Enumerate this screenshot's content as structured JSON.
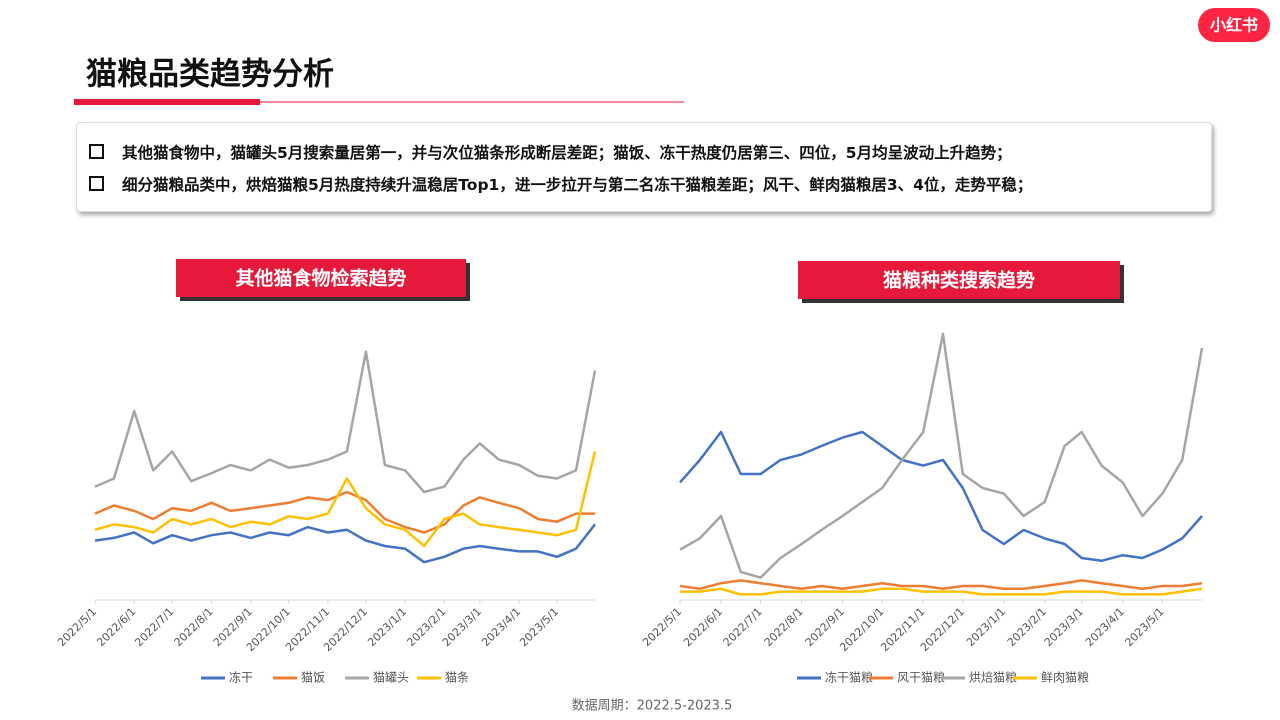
{
  "header": {
    "title": "猫粮品类趋势分析",
    "logo": "小红书"
  },
  "bullets": [
    "其他猫食物中，猫罐头5月搜索量居第一，并与次位猫条形成断层差距；猫饭、冻干热度仍居第三、四位，5月均呈波动上升趋势；",
    "细分猫粮品类中，烘焙猫粮5月热度持续升温稳居Top1，进一步拉开与第二名冻干猫粮差距；风干、鲜肉猫粮居3、4位，走势平稳；"
  ],
  "chart_data": [
    {
      "type": "line",
      "title": "其他猫食物检索趋势",
      "x": [
        "2022/5/1",
        "2022/5/16",
        "2022/6/1",
        "2022/6/16",
        "2022/7/1",
        "2022/7/16",
        "2022/8/1",
        "2022/8/16",
        "2022/9/1",
        "2022/9/16",
        "2022/10/1",
        "2022/10/16",
        "2022/11/1",
        "2022/11/16",
        "2022/12/1",
        "2022/12/16",
        "2023/1/1",
        "2023/1/16",
        "2023/2/1",
        "2023/2/16",
        "2023/3/1",
        "2023/3/16",
        "2023/4/1",
        "2023/4/16",
        "2023/5/1",
        "2023/5/16",
        "2023/5/31"
      ],
      "xlim": [
        "2022/5/1",
        "2023/5/31"
      ],
      "xticks": [
        "2022/5/1",
        "2022/6/1",
        "2022/7/1",
        "2022/8/1",
        "2022/9/1",
        "2022/10/1",
        "2022/11/1",
        "2022/12/1",
        "2023/1/1",
        "2023/2/1",
        "2023/3/1",
        "2023/4/1",
        "2023/5/1"
      ],
      "ylim": [
        0,
        100
      ],
      "series": [
        {
          "name": "冻干",
          "color": "#4472c4",
          "values": [
            22,
            23,
            25,
            21,
            24,
            22,
            24,
            25,
            23,
            25,
            24,
            27,
            25,
            26,
            22,
            20,
            19,
            14,
            16,
            19,
            20,
            19,
            18,
            18,
            16,
            19,
            28
          ]
        },
        {
          "name": "猫饭",
          "color": "#ed7d31",
          "values": [
            32,
            35,
            33,
            30,
            34,
            33,
            36,
            33,
            34,
            35,
            36,
            38,
            37,
            40,
            37,
            30,
            27,
            25,
            28,
            35,
            38,
            36,
            34,
            30,
            29,
            32,
            32
          ]
        },
        {
          "name": "猫罐头",
          "color": "#a5a5a5",
          "values": [
            42,
            45,
            70,
            48,
            55,
            44,
            47,
            50,
            48,
            52,
            49,
            50,
            52,
            55,
            92,
            50,
            48,
            40,
            42,
            52,
            58,
            52,
            50,
            46,
            45,
            48,
            85
          ]
        },
        {
          "name": "猫条",
          "color": "#ffc000",
          "values": [
            26,
            28,
            27,
            25,
            30,
            28,
            30,
            27,
            29,
            28,
            31,
            30,
            32,
            45,
            34,
            28,
            26,
            20,
            30,
            32,
            28,
            27,
            26,
            25,
            24,
            26,
            55
          ]
        }
      ]
    },
    {
      "type": "line",
      "title": "猫粮种类搜索趋势",
      "x": [
        "2022/5/1",
        "2022/5/16",
        "2022/6/1",
        "2022/6/16",
        "2022/7/1",
        "2022/7/16",
        "2022/8/1",
        "2022/8/16",
        "2022/9/1",
        "2022/9/16",
        "2022/10/1",
        "2022/10/16",
        "2022/11/1",
        "2022/11/16",
        "2022/12/1",
        "2022/12/16",
        "2023/1/1",
        "2023/1/16",
        "2023/2/1",
        "2023/2/16",
        "2023/3/1",
        "2023/3/16",
        "2023/4/1",
        "2023/4/16",
        "2023/5/1",
        "2023/5/16",
        "2023/5/31"
      ],
      "xlim": [
        "2022/5/1",
        "2023/5/31"
      ],
      "xticks": [
        "2022/5/1",
        "2022/6/1",
        "2022/7/1",
        "2022/8/1",
        "2022/9/1",
        "2022/10/1",
        "2022/11/1",
        "2022/12/1",
        "2023/1/1",
        "2023/2/1",
        "2023/3/1",
        "2023/4/1",
        "2023/5/1"
      ],
      "ylim": [
        0,
        100
      ],
      "series": [
        {
          "name": "冻干猫粮",
          "color": "#4472c4",
          "values": [
            42,
            50,
            60,
            45,
            45,
            50,
            52,
            55,
            58,
            60,
            55,
            50,
            48,
            50,
            40,
            25,
            20,
            25,
            22,
            20,
            15,
            14,
            16,
            15,
            18,
            22,
            30
          ]
        },
        {
          "name": "风干猫粮",
          "color": "#ed7d31",
          "values": [
            5,
            4,
            6,
            7,
            6,
            5,
            4,
            5,
            4,
            5,
            6,
            5,
            5,
            4,
            5,
            5,
            4,
            4,
            5,
            6,
            7,
            6,
            5,
            4,
            5,
            5,
            6
          ]
        },
        {
          "name": "烘焙猫粮",
          "color": "#a5a5a5",
          "values": [
            18,
            22,
            30,
            10,
            8,
            15,
            20,
            25,
            30,
            35,
            40,
            50,
            60,
            95,
            45,
            40,
            38,
            30,
            35,
            55,
            60,
            48,
            42,
            30,
            38,
            50,
            90
          ]
        },
        {
          "name": "鲜肉猫粮",
          "color": "#ffc000",
          "values": [
            3,
            3,
            4,
            2,
            2,
            3,
            3,
            3,
            3,
            3,
            4,
            4,
            3,
            3,
            3,
            2,
            2,
            2,
            2,
            3,
            3,
            3,
            2,
            2,
            2,
            3,
            4
          ]
        }
      ]
    }
  ],
  "footer": "数据周期：2022.5-2023.5"
}
